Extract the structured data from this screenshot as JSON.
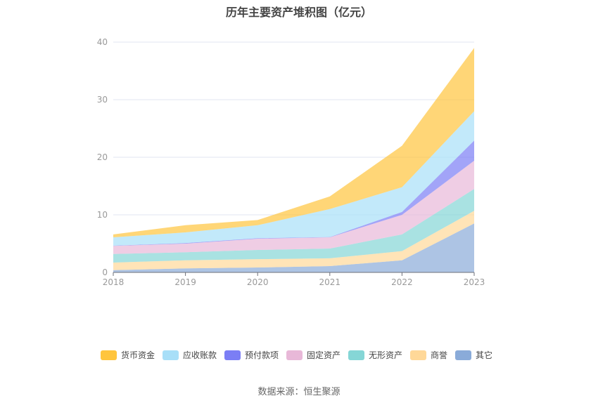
{
  "chart_data": {
    "type": "area",
    "stacked": true,
    "title": "历年主要资产堆积图（亿元）",
    "x": [
      "2018",
      "2019",
      "2020",
      "2021",
      "2022",
      "2023"
    ],
    "ylim": [
      0,
      40
    ],
    "yticks": [
      0,
      10,
      20,
      30,
      40
    ],
    "grid": true,
    "legend_position": "bottom",
    "series": [
      {
        "name": "其它",
        "color": "#8aabd9",
        "values": [
          0.4,
          0.7,
          0.85,
          1.1,
          2.1,
          8.5
        ]
      },
      {
        "name": "商誉",
        "color": "#ffd898",
        "values": [
          1.3,
          1.4,
          1.45,
          1.35,
          1.6,
          2.2
        ]
      },
      {
        "name": "无形资产",
        "color": "#85d6d6",
        "values": [
          1.5,
          1.4,
          1.6,
          1.7,
          2.9,
          3.8
        ]
      },
      {
        "name": "固定资产",
        "color": "#e8b8d8",
        "values": [
          1.4,
          1.5,
          1.95,
          1.95,
          3.4,
          4.9
        ]
      },
      {
        "name": "预付款项",
        "color": "#7b7ef5",
        "values": [
          0.05,
          0.1,
          0.1,
          0.05,
          0.5,
          3.5
        ]
      },
      {
        "name": "应收账款",
        "color": "#a8dff8",
        "values": [
          1.45,
          1.85,
          2.25,
          4.85,
          4.3,
          5.1
        ]
      },
      {
        "name": "货币资金",
        "color": "#ffc53d",
        "values": [
          0.5,
          1.25,
          0.9,
          2.2,
          7.2,
          11.0
        ]
      }
    ]
  },
  "source": "数据来源：恒生聚源"
}
